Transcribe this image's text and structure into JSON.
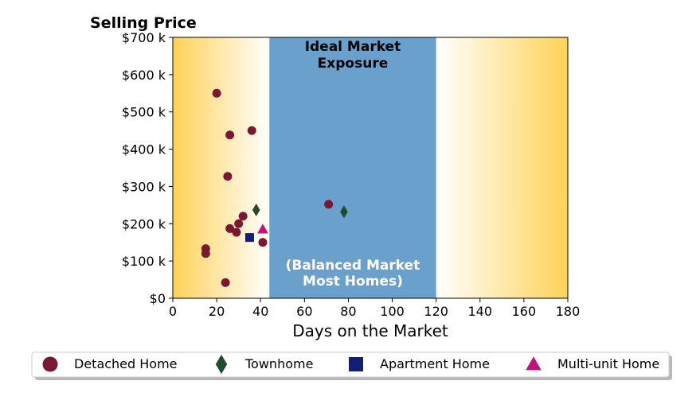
{
  "chart_data": {
    "type": "scatter",
    "title": "",
    "ylabel": "Selling Price",
    "xlabel": "Days on the Market",
    "xlim": [
      0,
      180
    ],
    "ylim": [
      0,
      700000
    ],
    "x_ticks": [
      0,
      20,
      40,
      60,
      80,
      100,
      120,
      140,
      160,
      180
    ],
    "x_tick_labels": [
      "0",
      "20",
      "40",
      "60",
      "80",
      "100",
      "120",
      "140",
      "160",
      "180"
    ],
    "y_ticks": [
      0,
      100000,
      200000,
      300000,
      400000,
      500000,
      600000,
      700000
    ],
    "y_tick_labels": [
      "$0",
      "$100 k",
      "$200 k",
      "$300 k",
      "$400 k",
      "$500 k",
      "$600 k",
      "$700 k"
    ],
    "grid": false,
    "band": {
      "x_range": [
        44,
        120
      ],
      "color": "#6aa1cc",
      "label_top": [
        "Ideal Market",
        "Exposure"
      ],
      "label_bottom": [
        "(Balanced Market",
        "Most Homes)"
      ]
    },
    "background_gradient": {
      "edge_color": "#ffd257",
      "center_color": "#ffffff"
    },
    "legend_placement": "bottom-center",
    "series": [
      {
        "name": "Detached Home",
        "marker": "circle",
        "color": "#7b1733",
        "points": [
          [
            20,
            550000
          ],
          [
            26,
            438000
          ],
          [
            36,
            450000
          ],
          [
            25,
            327000
          ],
          [
            32,
            220000
          ],
          [
            30,
            200000
          ],
          [
            26,
            187000
          ],
          [
            29,
            177000
          ],
          [
            41,
            150000
          ],
          [
            15,
            133000
          ],
          [
            15,
            120000
          ],
          [
            24,
            42000
          ],
          [
            71,
            252000
          ]
        ]
      },
      {
        "name": "Townhome",
        "marker": "diamond",
        "color": "#1f4d2b",
        "points": [
          [
            38,
            237000
          ],
          [
            78,
            232000
          ]
        ]
      },
      {
        "name": "Apartment Home",
        "marker": "square",
        "color": "#112074",
        "points": [
          [
            35,
            163000
          ]
        ]
      },
      {
        "name": "Multi-unit Home",
        "marker": "triangle",
        "color": "#c4127a",
        "points": [
          [
            41,
            185000
          ]
        ]
      }
    ]
  }
}
